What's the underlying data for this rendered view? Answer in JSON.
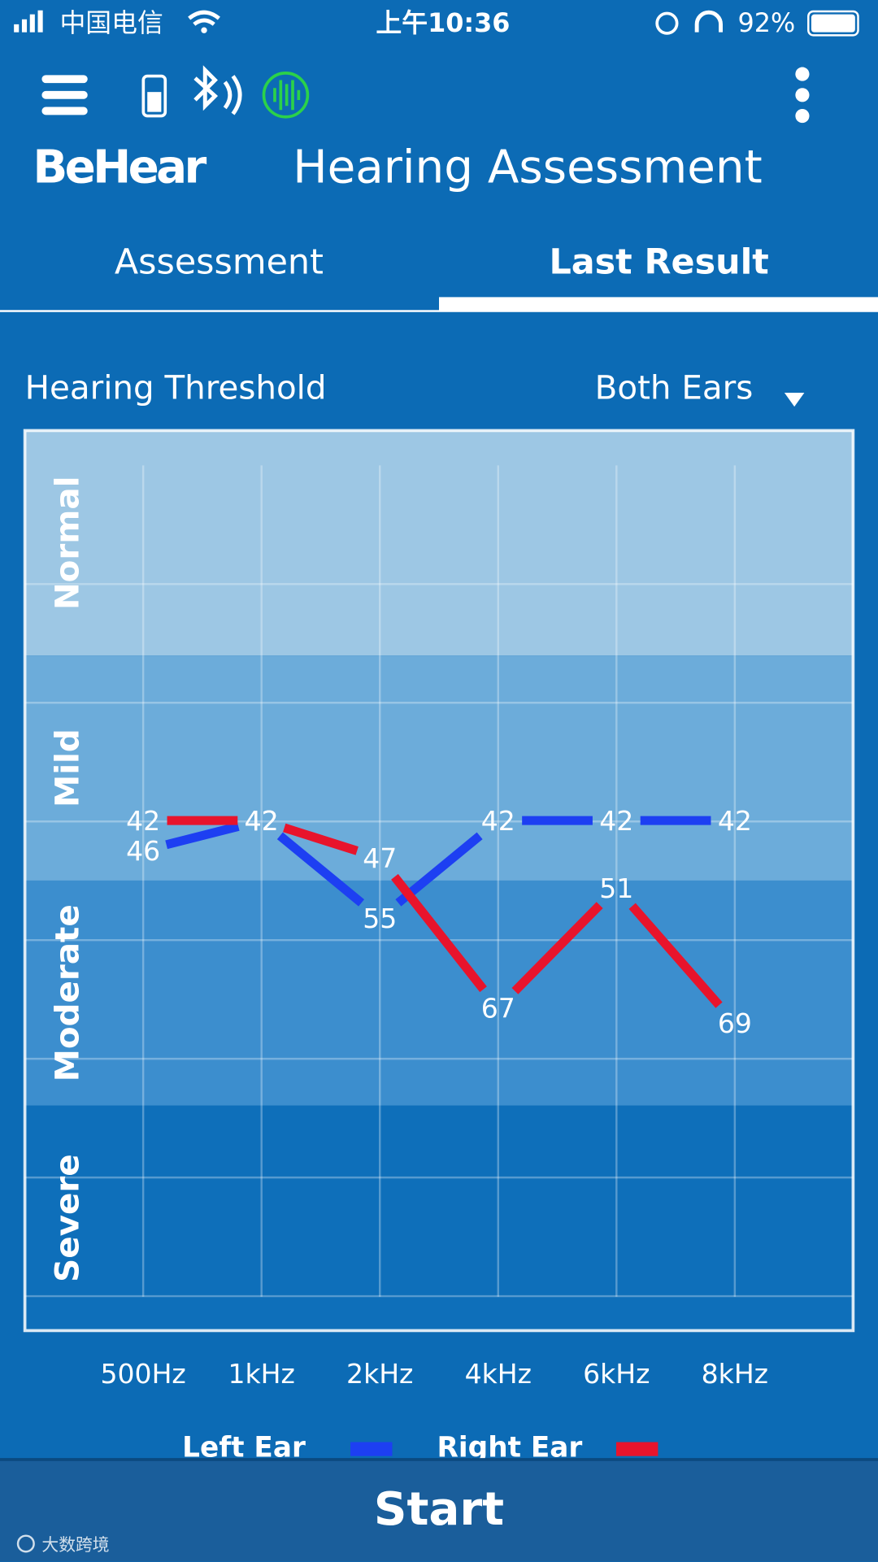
{
  "status_bar": {
    "carrier": "中国电信",
    "time": "上午10:36",
    "battery": "92%"
  },
  "header": {
    "logo": "BeHear",
    "title": "Hearing Assessment"
  },
  "tabs": [
    "Assessment",
    "Last Result"
  ],
  "section": {
    "title": "Hearing Threshold",
    "selector": "Both Ears"
  },
  "chart_data": {
    "type": "line",
    "categories": [
      "500Hz",
      "1kHz",
      "2kHz",
      "4kHz",
      "6kHz",
      "8kHz"
    ],
    "series": [
      {
        "name": "Left Ear",
        "color": "#1d3ff2",
        "values": [
          46,
          42,
          55,
          42,
          42,
          42
        ]
      },
      {
        "name": "Right Ear",
        "color": "#e8142c",
        "values": [
          42,
          42,
          47,
          67,
          51,
          69
        ]
      }
    ],
    "ylim": [
      110,
      -10
    ],
    "bands": [
      {
        "label": "Normal",
        "range": [
          -10,
          20
        ],
        "color": "#9dc7e4"
      },
      {
        "label": "Mild",
        "range": [
          20,
          50
        ],
        "color": "#6cacda"
      },
      {
        "label": "Moderate",
        "range": [
          50,
          80
        ],
        "color": "#3c8ece"
      },
      {
        "label": "Severe",
        "range": [
          80,
          110
        ],
        "color": "#0e6fba"
      }
    ],
    "grid": true
  },
  "button": "Start",
  "watermark": "大数跨境"
}
